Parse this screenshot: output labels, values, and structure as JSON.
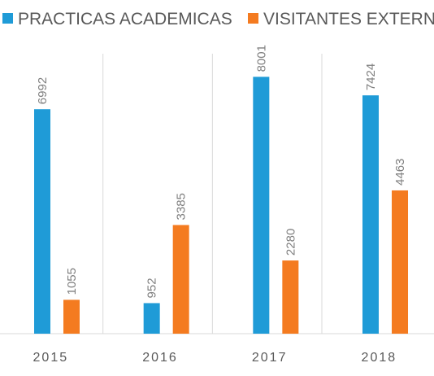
{
  "chart_data": {
    "type": "bar",
    "title": "",
    "xlabel": "",
    "ylabel": "",
    "categories": [
      "2015",
      "2016",
      "2017",
      "2018"
    ],
    "series": [
      {
        "name": "PRACTICAS ACADEMICAS",
        "values": [
          6992,
          952,
          8001,
          7424
        ],
        "color": "#1F9BD7"
      },
      {
        "name": "VISITANTES EXTERNOS",
        "values": [
          1055,
          3385,
          2280,
          4463
        ],
        "color": "#F47B20"
      }
    ],
    "ylim": [
      0,
      9000
    ],
    "data_labels": true,
    "data_label_rotation": -90,
    "gridlines": "vertical-category-separators",
    "legend_position": "top"
  }
}
